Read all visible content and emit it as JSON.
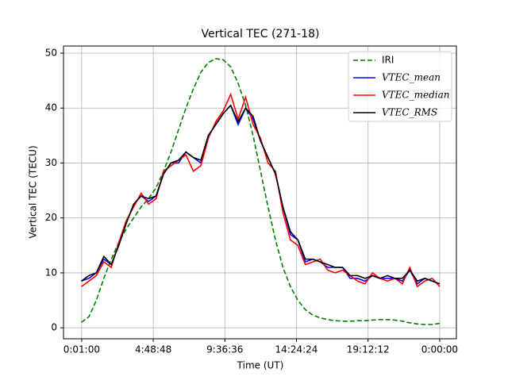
{
  "chart_data": {
    "type": "line",
    "title": "Vertical TEC (271-18)",
    "xlabel": "Time (UT)",
    "ylabel": "Vertical TEC (TECU)",
    "x": [
      0,
      0.5,
      1,
      1.5,
      2,
      2.5,
      3,
      3.5,
      4,
      4.5,
      5,
      5.5,
      6,
      6.5,
      7,
      7.5,
      8,
      8.5,
      9,
      9.5,
      10,
      10.5,
      11,
      11.5,
      12,
      12.5,
      13,
      13.5,
      14,
      14.5,
      15,
      15.5,
      16,
      16.5,
      17,
      17.5,
      18,
      18.5,
      19,
      19.5,
      20,
      20.5,
      21,
      21.5,
      22,
      22.5,
      23,
      23.5,
      24
    ],
    "series": [
      {
        "name": "IRI",
        "color": "#008000",
        "linestyle": "dashed",
        "values": [
          1.0,
          2.0,
          5.0,
          9.0,
          12.5,
          15.5,
          18,
          20,
          22,
          23.5,
          25.5,
          28.5,
          32,
          36,
          40,
          43.5,
          46.5,
          48.3,
          49,
          48.8,
          47.5,
          44.5,
          40.5,
          35,
          28.5,
          22,
          16,
          11,
          7.5,
          5,
          3.3,
          2.3,
          1.8,
          1.5,
          1.3,
          1.2,
          1.2,
          1.3,
          1.3,
          1.4,
          1.5,
          1.5,
          1.4,
          1.2,
          0.9,
          0.7,
          0.6,
          0.6,
          0.8
        ]
      },
      {
        "name": "VTEC_mean",
        "color": "#0000ff",
        "linestyle": "solid",
        "values": [
          8.5,
          9,
          10,
          12.5,
          11.5,
          15,
          19,
          22.5,
          24,
          23,
          24,
          28,
          30,
          30,
          32,
          31,
          30,
          35,
          37,
          39,
          40.5,
          37,
          40,
          38,
          34,
          31,
          28,
          22,
          17,
          16,
          12,
          12.5,
          12,
          11,
          11,
          11,
          9,
          9,
          8.5,
          9.5,
          9,
          9,
          9,
          8.5,
          10.5,
          8,
          9,
          8.5,
          8
        ]
      },
      {
        "name": "VTEC_median",
        "color": "#ff0000",
        "linestyle": "solid",
        "values": [
          7.5,
          8.5,
          9.5,
          12,
          11,
          15.5,
          19.5,
          22,
          24.5,
          22.5,
          23.5,
          28.5,
          29.5,
          30.5,
          31.5,
          28.5,
          29.5,
          34.5,
          37.5,
          39.5,
          42.5,
          38,
          42,
          37,
          34.5,
          30,
          28.5,
          21,
          16,
          15,
          11.5,
          12,
          12.5,
          10.5,
          10,
          10.5,
          9.5,
          8.5,
          8,
          10,
          9,
          8.5,
          9,
          8,
          11,
          7.5,
          8.5,
          9,
          7.5
        ]
      },
      {
        "name": "VTEC_RMS",
        "color": "#000000",
        "linestyle": "solid",
        "values": [
          8.5,
          9.5,
          10,
          13,
          11.5,
          15,
          19,
          22.5,
          24,
          23.5,
          24,
          28,
          30,
          30.5,
          32,
          31,
          30.5,
          35,
          37,
          39,
          40.5,
          37.5,
          40,
          38.5,
          34,
          31,
          28,
          22,
          17.5,
          16,
          12.5,
          12.5,
          12,
          11.5,
          11,
          11,
          9.5,
          9.5,
          9,
          9.5,
          9,
          9.5,
          9,
          9,
          10.5,
          8.5,
          9,
          8.5,
          8
        ]
      }
    ],
    "xlim": [
      -1.2,
      25.12
    ],
    "ylim": [
      -2,
      51.3
    ],
    "xticks": [
      {
        "value": 0.0167,
        "label": "0:01:00"
      },
      {
        "value": 4.8133,
        "label": "4:48:48"
      },
      {
        "value": 9.61,
        "label": "9:36:36"
      },
      {
        "value": 14.4067,
        "label": "14:24:24"
      },
      {
        "value": 19.2033,
        "label": "19:12:12"
      },
      {
        "value": 24,
        "label": "0:00:00"
      }
    ],
    "yticks": [
      0,
      10,
      20,
      30,
      40,
      50
    ],
    "grid": true,
    "legend": "upper right"
  }
}
